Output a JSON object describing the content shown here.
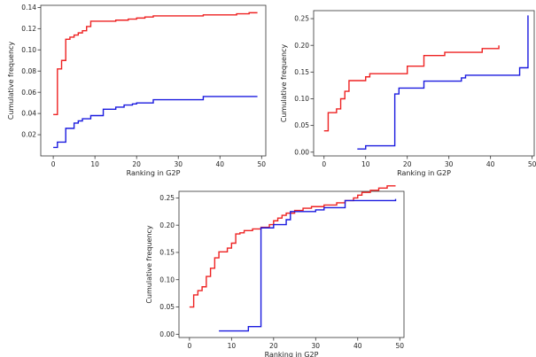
{
  "colors": {
    "red": "#ee2222",
    "blue": "#1a1adf"
  },
  "chart_data": [
    {
      "type": "line",
      "xlabel": "Ranking in G2P",
      "ylabel": "Cumulative frequency",
      "xlim": [
        -3,
        51
      ],
      "ylim": [
        0.0,
        0.142
      ],
      "xticks": [
        0,
        10,
        20,
        30,
        40,
        50
      ],
      "xtick_labels": [
        "0",
        "10",
        "20",
        "30",
        "40",
        "50"
      ],
      "yticks": [
        0.02,
        0.04,
        0.06,
        0.08,
        0.1,
        0.12,
        0.14
      ],
      "ytick_labels": [
        "0.02",
        "0.04",
        "0.06",
        "0.08",
        "0.10",
        "0.12",
        "0.14"
      ],
      "grid": false,
      "series": [
        {
          "color": "red",
          "step": true,
          "points": [
            [
              0,
              0.039
            ],
            [
              1,
              0.039
            ],
            [
              1,
              0.082
            ],
            [
              2,
              0.082
            ],
            [
              2,
              0.09
            ],
            [
              3,
              0.09
            ],
            [
              3,
              0.11
            ],
            [
              4,
              0.11
            ],
            [
              4,
              0.112
            ],
            [
              5,
              0.112
            ],
            [
              5,
              0.114
            ],
            [
              6,
              0.114
            ],
            [
              6,
              0.116
            ],
            [
              7,
              0.116
            ],
            [
              7,
              0.118
            ],
            [
              8,
              0.118
            ],
            [
              8,
              0.122
            ],
            [
              9,
              0.122
            ],
            [
              9,
              0.127
            ],
            [
              15,
              0.127
            ],
            [
              15,
              0.128
            ],
            [
              18,
              0.128
            ],
            [
              18,
              0.129
            ],
            [
              20,
              0.129
            ],
            [
              20,
              0.13
            ],
            [
              22,
              0.13
            ],
            [
              22,
              0.131
            ],
            [
              24,
              0.131
            ],
            [
              24,
              0.132
            ],
            [
              36,
              0.132
            ],
            [
              36,
              0.133
            ],
            [
              44,
              0.133
            ],
            [
              44,
              0.134
            ],
            [
              47,
              0.134
            ],
            [
              47,
              0.135
            ],
            [
              49,
              0.135
            ]
          ]
        },
        {
          "color": "blue",
          "step": true,
          "points": [
            [
              0,
              0.008
            ],
            [
              1,
              0.008
            ],
            [
              1,
              0.013
            ],
            [
              3,
              0.013
            ],
            [
              3,
              0.026
            ],
            [
              5,
              0.026
            ],
            [
              5,
              0.031
            ],
            [
              6,
              0.031
            ],
            [
              6,
              0.033
            ],
            [
              7,
              0.033
            ],
            [
              7,
              0.035
            ],
            [
              9,
              0.035
            ],
            [
              9,
              0.038
            ],
            [
              12,
              0.038
            ],
            [
              12,
              0.044
            ],
            [
              15,
              0.044
            ],
            [
              15,
              0.046
            ],
            [
              17,
              0.046
            ],
            [
              17,
              0.048
            ],
            [
              19,
              0.048
            ],
            [
              19,
              0.049
            ],
            [
              20,
              0.049
            ],
            [
              20,
              0.05
            ],
            [
              24,
              0.05
            ],
            [
              24,
              0.053
            ],
            [
              36,
              0.053
            ],
            [
              36,
              0.056
            ],
            [
              49,
              0.056
            ]
          ]
        }
      ]
    },
    {
      "type": "line",
      "xlabel": "Ranking in G2P",
      "ylabel": "Cumulative frequency",
      "xlim": [
        -2.5,
        50.5
      ],
      "ylim": [
        -0.007,
        0.265
      ],
      "xticks": [
        0,
        10,
        20,
        30,
        40,
        50
      ],
      "xtick_labels": [
        "0",
        "10",
        "20",
        "30",
        "40",
        "50"
      ],
      "yticks": [
        0.0,
        0.05,
        0.1,
        0.15,
        0.2,
        0.25
      ],
      "ytick_labels": [
        "0.00",
        "0.05",
        "0.10",
        "0.15",
        "0.20",
        "0.25"
      ],
      "grid": false,
      "series": [
        {
          "color": "red",
          "step": true,
          "points": [
            [
              0,
              0.04
            ],
            [
              1,
              0.04
            ],
            [
              1,
              0.074
            ],
            [
              3,
              0.074
            ],
            [
              3,
              0.081
            ],
            [
              4,
              0.081
            ],
            [
              4,
              0.1
            ],
            [
              5,
              0.1
            ],
            [
              5,
              0.114
            ],
            [
              6,
              0.114
            ],
            [
              6,
              0.134
            ],
            [
              10,
              0.134
            ],
            [
              10,
              0.141
            ],
            [
              11,
              0.141
            ],
            [
              11,
              0.147
            ],
            [
              20,
              0.147
            ],
            [
              20,
              0.161
            ],
            [
              24,
              0.161
            ],
            [
              24,
              0.181
            ],
            [
              29,
              0.181
            ],
            [
              29,
              0.187
            ],
            [
              38,
              0.187
            ],
            [
              38,
              0.194
            ],
            [
              42,
              0.194
            ],
            [
              42,
              0.2
            ]
          ]
        },
        {
          "color": "blue",
          "step": true,
          "points": [
            [
              8,
              0.006
            ],
            [
              10,
              0.006
            ],
            [
              10,
              0.012
            ],
            [
              17,
              0.012
            ],
            [
              17,
              0.109
            ],
            [
              18,
              0.109
            ],
            [
              18,
              0.12
            ],
            [
              24,
              0.12
            ],
            [
              24,
              0.133
            ],
            [
              33,
              0.133
            ],
            [
              33,
              0.139
            ],
            [
              34,
              0.139
            ],
            [
              34,
              0.144
            ],
            [
              47,
              0.144
            ],
            [
              47,
              0.158
            ],
            [
              49,
              0.158
            ],
            [
              49,
              0.256
            ]
          ]
        }
      ]
    },
    {
      "type": "line",
      "xlabel": "Ranking in G2P",
      "ylabel": "Cumulative frequency",
      "xlim": [
        -2.5,
        51
      ],
      "ylim": [
        -0.006,
        0.262
      ],
      "xticks": [
        0,
        10,
        20,
        30,
        40,
        50
      ],
      "xtick_labels": [
        "0",
        "10",
        "20",
        "30",
        "40",
        "50"
      ],
      "yticks": [
        0.0,
        0.05,
        0.1,
        0.15,
        0.2,
        0.25
      ],
      "ytick_labels": [
        "0.00",
        "0.05",
        "0.10",
        "0.15",
        "0.20",
        "0.25"
      ],
      "grid": false,
      "series": [
        {
          "color": "red",
          "step": true,
          "points": [
            [
              0,
              0.05
            ],
            [
              1,
              0.05
            ],
            [
              1,
              0.072
            ],
            [
              2,
              0.072
            ],
            [
              2,
              0.08
            ],
            [
              3,
              0.08
            ],
            [
              3,
              0.087
            ],
            [
              4,
              0.087
            ],
            [
              4,
              0.106
            ],
            [
              5,
              0.106
            ],
            [
              5,
              0.121
            ],
            [
              6,
              0.121
            ],
            [
              6,
              0.14
            ],
            [
              7,
              0.14
            ],
            [
              7,
              0.151
            ],
            [
              9,
              0.151
            ],
            [
              9,
              0.158
            ],
            [
              10,
              0.158
            ],
            [
              10,
              0.167
            ],
            [
              11,
              0.167
            ],
            [
              11,
              0.184
            ],
            [
              12,
              0.184
            ],
            [
              12,
              0.186
            ],
            [
              13,
              0.186
            ],
            [
              13,
              0.19
            ],
            [
              15,
              0.19
            ],
            [
              15,
              0.193
            ],
            [
              17,
              0.193
            ],
            [
              17,
              0.196
            ],
            [
              19,
              0.196
            ],
            [
              19,
              0.201
            ],
            [
              20,
              0.201
            ],
            [
              20,
              0.208
            ],
            [
              21,
              0.208
            ],
            [
              21,
              0.213
            ],
            [
              22,
              0.213
            ],
            [
              22,
              0.218
            ],
            [
              23,
              0.218
            ],
            [
              23,
              0.222
            ],
            [
              25,
              0.222
            ],
            [
              25,
              0.227
            ],
            [
              27,
              0.227
            ],
            [
              27,
              0.231
            ],
            [
              29,
              0.231
            ],
            [
              29,
              0.234
            ],
            [
              32,
              0.234
            ],
            [
              32,
              0.237
            ],
            [
              35,
              0.237
            ],
            [
              35,
              0.241
            ],
            [
              37,
              0.241
            ],
            [
              37,
              0.245
            ],
            [
              39,
              0.245
            ],
            [
              39,
              0.25
            ],
            [
              40,
              0.25
            ],
            [
              40,
              0.255
            ],
            [
              41,
              0.255
            ],
            [
              41,
              0.26
            ],
            [
              43,
              0.26
            ],
            [
              43,
              0.264
            ],
            [
              45,
              0.264
            ],
            [
              45,
              0.268
            ],
            [
              47,
              0.268
            ],
            [
              47,
              0.272
            ],
            [
              49,
              0.272
            ]
          ]
        },
        {
          "color": "blue",
          "step": true,
          "points": [
            [
              7,
              0.006
            ],
            [
              14,
              0.006
            ],
            [
              14,
              0.014
            ],
            [
              17,
              0.014
            ],
            [
              17,
              0.195
            ],
            [
              20,
              0.195
            ],
            [
              20,
              0.201
            ],
            [
              23,
              0.201
            ],
            [
              23,
              0.21
            ],
            [
              24,
              0.21
            ],
            [
              24,
              0.225
            ],
            [
              30,
              0.225
            ],
            [
              30,
              0.228
            ],
            [
              32,
              0.228
            ],
            [
              32,
              0.232
            ],
            [
              37,
              0.232
            ],
            [
              37,
              0.245
            ],
            [
              49,
              0.245
            ],
            [
              49,
              0.248
            ]
          ]
        }
      ]
    }
  ]
}
